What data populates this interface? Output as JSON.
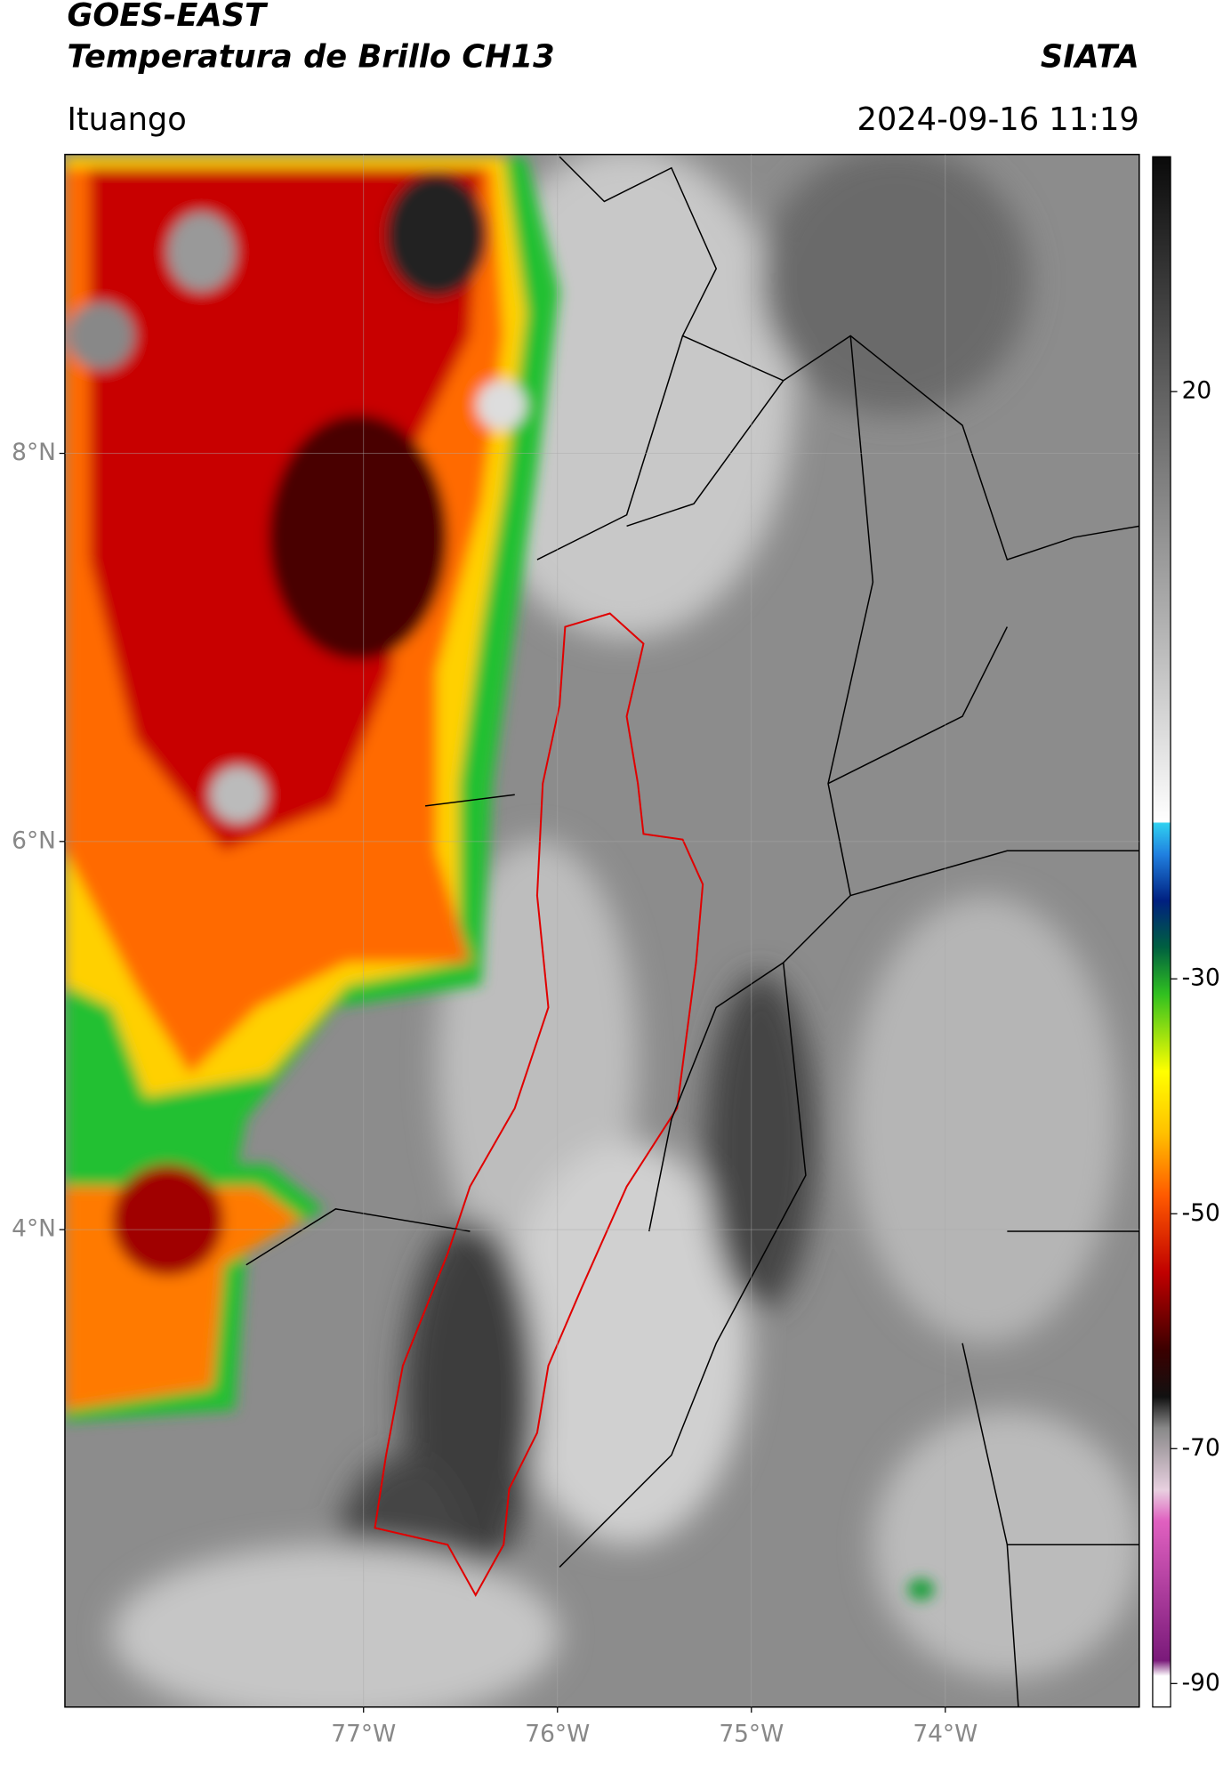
{
  "header": {
    "satellite": "GOES-EAST",
    "product": "Temperatura de Brillo CH13",
    "institution": "SIATA",
    "region": "Ituango",
    "datetime": "2024-09-16 11:19"
  },
  "map": {
    "lat_range": [
      1.54,
      9.54
    ],
    "lon_range": [
      -78.54,
      -73.0
    ],
    "lat_ticks": [
      {
        "value": 8,
        "label": "8°N"
      },
      {
        "value": 6,
        "label": "6°N"
      },
      {
        "value": 4,
        "label": "4°N"
      }
    ],
    "lon_ticks": [
      {
        "value": -77,
        "label": "77°W"
      },
      {
        "value": -76,
        "label": "76°W"
      },
      {
        "value": -75,
        "label": "75°W"
      },
      {
        "value": -74,
        "label": "74°W"
      }
    ]
  },
  "colorbar": {
    "range": [
      -92,
      40
    ],
    "ticks": [
      20,
      -30,
      -50,
      -70,
      -90
    ]
  }
}
